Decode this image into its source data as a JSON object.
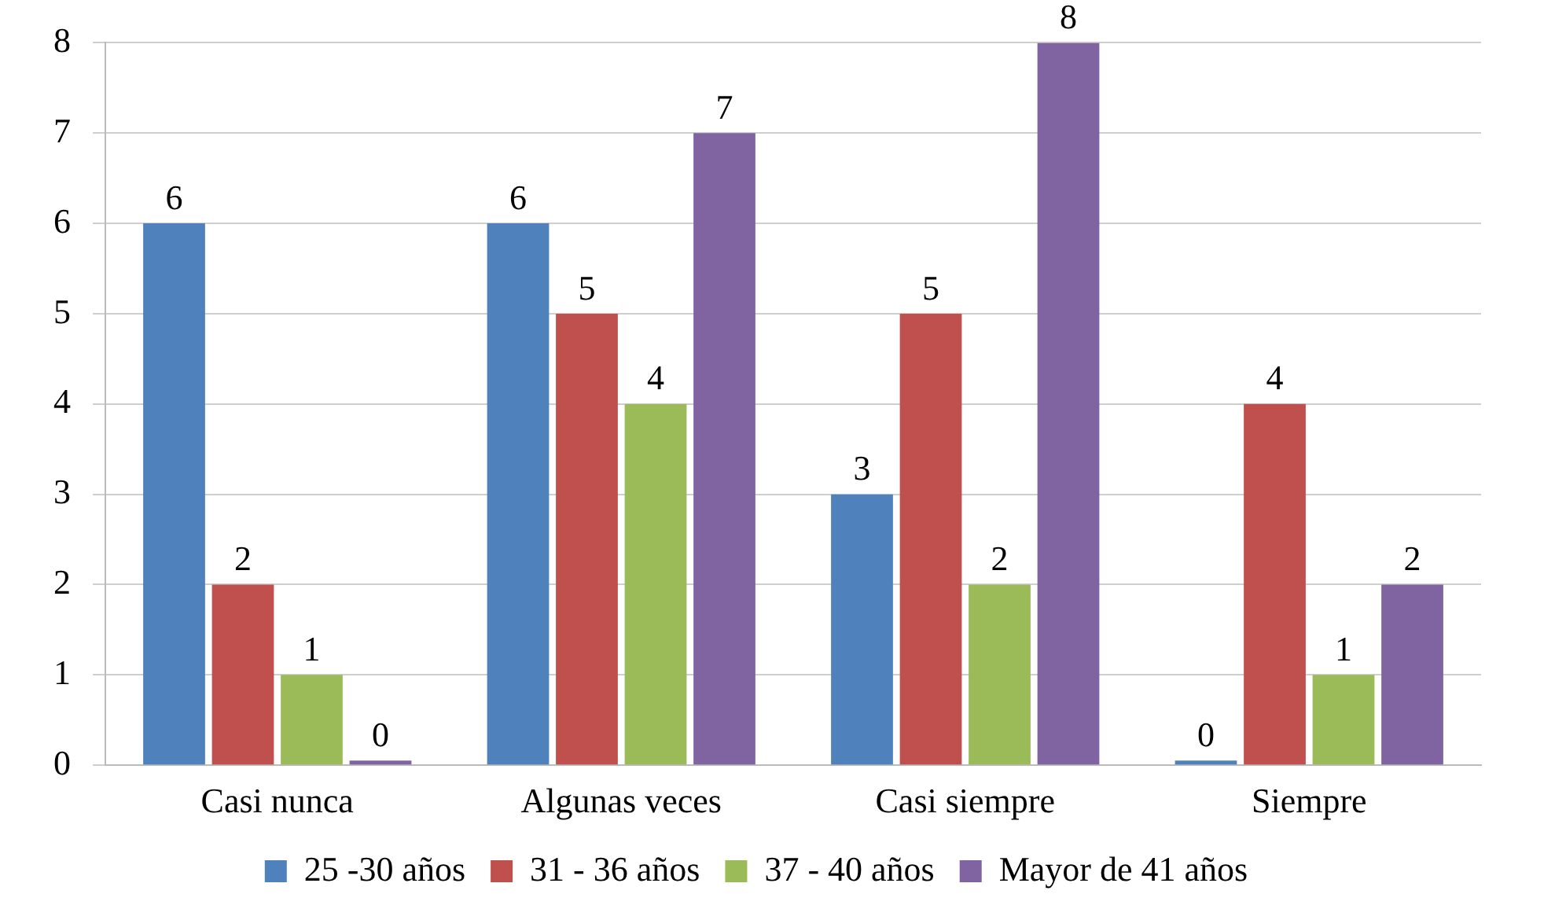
{
  "chart_data": {
    "type": "bar",
    "categories": [
      "Casi nunca",
      "Algunas veces",
      "Casi siempre",
      "Siempre"
    ],
    "series": [
      {
        "name": "25 -30 años",
        "color": "#4f81bd",
        "values": [
          6,
          6,
          3,
          0
        ]
      },
      {
        "name": "31 - 36 años",
        "color": "#c0504d",
        "values": [
          2,
          5,
          5,
          4
        ]
      },
      {
        "name": "37 - 40 años",
        "color": "#9bbb59",
        "values": [
          1,
          4,
          2,
          1
        ]
      },
      {
        "name": "Mayor de 41 años",
        "color": "#8064a2",
        "values": [
          0,
          7,
          8,
          2
        ]
      }
    ],
    "ylim": [
      0,
      8
    ],
    "yticks": [
      0,
      1,
      2,
      3,
      4,
      5,
      6,
      7,
      8
    ],
    "grid": "y",
    "legend": "bottom",
    "data_labels": true
  }
}
